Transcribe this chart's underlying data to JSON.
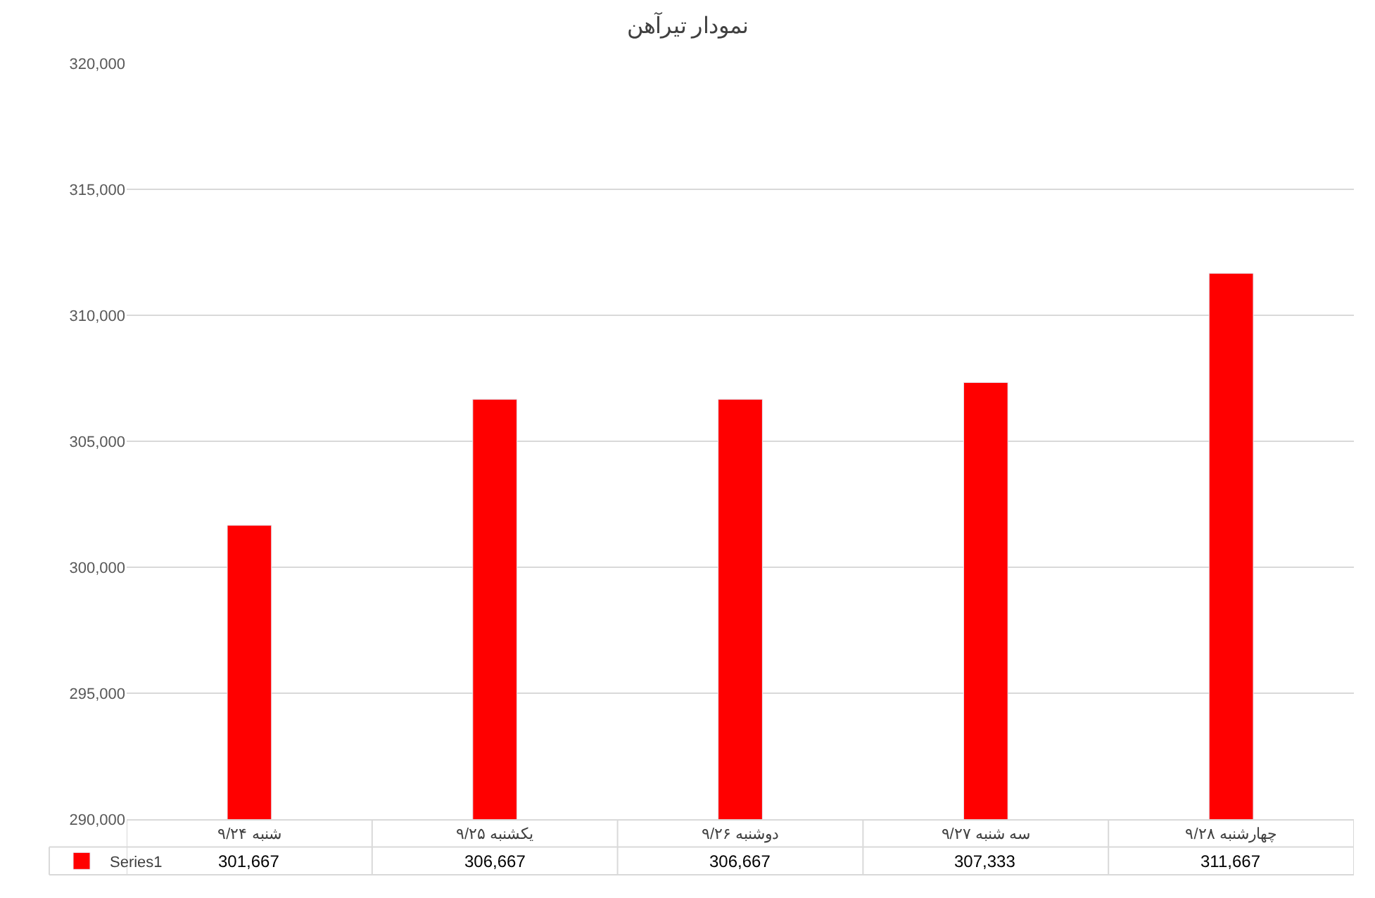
{
  "chart_data": {
    "type": "bar",
    "title": "نمودار تیرآهن",
    "categories": [
      "شنبه ۹/۲۴",
      "یکشنبه ۹/۲۵",
      "دوشنبه ۹/۲۶",
      "سه شنبه ۹/۲۷",
      "چهارشنبه ۹/۲۸"
    ],
    "series": [
      {
        "name": "Series1",
        "color": "#ff0000",
        "values": [
          301667,
          306667,
          306667,
          307333,
          311667
        ],
        "value_labels": [
          "301,667",
          "306,667",
          "306,667",
          "307,333",
          "311,667"
        ]
      }
    ],
    "ylim": [
      290000,
      320000
    ],
    "yticks": [
      {
        "value": 290000,
        "label": "290,000"
      },
      {
        "value": 295000,
        "label": "295,000"
      },
      {
        "value": 300000,
        "label": "300,000"
      },
      {
        "value": 305000,
        "label": "305,000"
      },
      {
        "value": 310000,
        "label": "310,000"
      },
      {
        "value": 315000,
        "label": "315,000"
      },
      {
        "value": 320000,
        "label": "320,000"
      }
    ],
    "grid": "y",
    "legend": "bottom left"
  }
}
